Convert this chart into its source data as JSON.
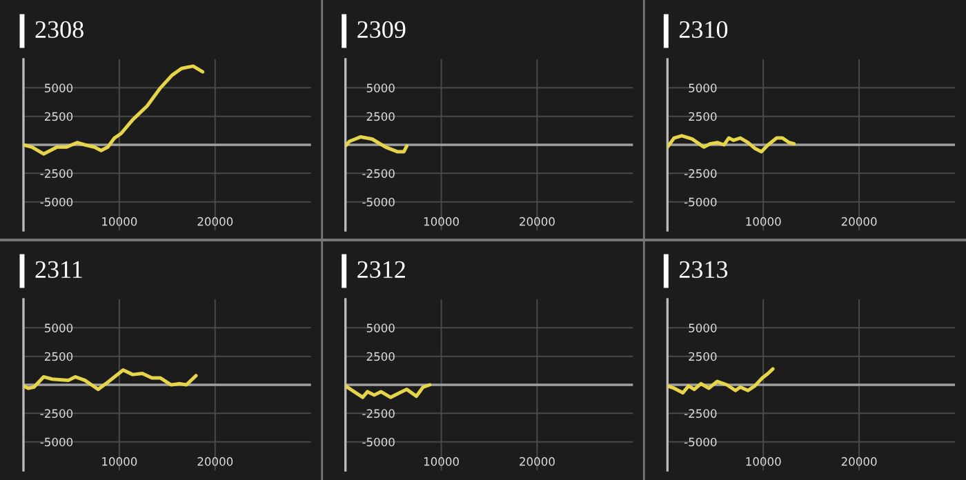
{
  "chart_data": [
    {
      "type": "line",
      "title": "2308",
      "xlim": [
        0,
        30000
      ],
      "xticks": [
        10000,
        20000
      ],
      "ylim": [
        -7500,
        7500
      ],
      "yticks": [
        -5000,
        -2500,
        2500,
        5000
      ],
      "grid": true,
      "legend": false,
      "ref_lines": [
        {
          "axis": "y",
          "value": 0,
          "color": "#a0a0a0"
        }
      ],
      "series": [
        {
          "color": "#e6d44a",
          "x": [
            0,
            900,
            2100,
            3500,
            4500,
            5600,
            6400,
            7400,
            8100,
            8800,
            9500,
            10200,
            11400,
            12900,
            14300,
            15500,
            16500,
            17700,
            18700
          ],
          "values": [
            0,
            -200,
            -800,
            -200,
            -200,
            200,
            0,
            -200,
            -500,
            -200,
            600,
            1000,
            2200,
            3400,
            5000,
            6100,
            6700,
            6900,
            6400
          ]
        }
      ]
    },
    {
      "type": "line",
      "title": "2309",
      "xlim": [
        0,
        30000
      ],
      "xticks": [
        10000,
        20000
      ],
      "ylim": [
        -7500,
        7500
      ],
      "yticks": [
        -5000,
        -2500,
        2500,
        5000
      ],
      "grid": true,
      "legend": false,
      "ref_lines": [
        {
          "axis": "y",
          "value": 0,
          "color": "#a0a0a0"
        }
      ],
      "series": [
        {
          "color": "#e6d44a",
          "x": [
            0,
            400,
            1600,
            2800,
            4200,
            5400,
            6100,
            6400
          ],
          "values": [
            -100,
            300,
            700,
            500,
            -200,
            -600,
            -600,
            -100
          ]
        }
      ]
    },
    {
      "type": "line",
      "title": "2310",
      "xlim": [
        0,
        30000
      ],
      "xticks": [
        10000,
        20000
      ],
      "ylim": [
        -7500,
        7500
      ],
      "yticks": [
        -5000,
        -2500,
        2500,
        5000
      ],
      "grid": true,
      "legend": false,
      "ref_lines": [
        {
          "axis": "y",
          "value": 0,
          "color": "#a0a0a0"
        }
      ],
      "series": [
        {
          "color": "#e6d44a",
          "x": [
            0,
            700,
            1500,
            2600,
            3800,
            4500,
            5200,
            5900,
            6400,
            6900,
            7600,
            8400,
            9100,
            9800,
            10500,
            11400,
            12000,
            12700,
            13200
          ],
          "values": [
            -200,
            600,
            800,
            500,
            -200,
            100,
            200,
            0,
            600,
            400,
            600,
            200,
            -300,
            -600,
            0,
            600,
            600,
            200,
            100
          ]
        }
      ]
    },
    {
      "type": "line",
      "title": "2311",
      "xlim": [
        0,
        30000
      ],
      "xticks": [
        10000,
        20000
      ],
      "ylim": [
        -7500,
        7500
      ],
      "yticks": [
        -5000,
        -2500,
        2500,
        5000
      ],
      "grid": true,
      "legend": false,
      "ref_lines": [
        {
          "axis": "y",
          "value": 0,
          "color": "#a0a0a0"
        }
      ],
      "series": [
        {
          "color": "#e6d44a",
          "x": [
            0,
            500,
            1100,
            2100,
            3000,
            4700,
            5400,
            6400,
            7100,
            7800,
            8600,
            9500,
            10400,
            11400,
            12400,
            13400,
            14300,
            15400,
            16300,
            17000,
            18000
          ],
          "values": [
            -100,
            -300,
            -200,
            700,
            500,
            400,
            700,
            400,
            0,
            -400,
            100,
            700,
            1300,
            900,
            1000,
            600,
            600,
            0,
            100,
            0,
            800
          ]
        }
      ]
    },
    {
      "type": "line",
      "title": "2312",
      "xlim": [
        0,
        30000
      ],
      "xticks": [
        10000,
        20000
      ],
      "ylim": [
        -7500,
        7500
      ],
      "yticks": [
        -5000,
        -2500,
        2500,
        5000
      ],
      "grid": true,
      "legend": false,
      "ref_lines": [
        {
          "axis": "y",
          "value": 0,
          "color": "#a0a0a0"
        }
      ],
      "series": [
        {
          "color": "#e6d44a",
          "x": [
            0,
            900,
            1800,
            2300,
            3000,
            3700,
            4700,
            5400,
            6400,
            7400,
            8100,
            8800
          ],
          "values": [
            -100,
            -600,
            -1100,
            -600,
            -900,
            -600,
            -1100,
            -800,
            -400,
            -1000,
            -200,
            0
          ]
        }
      ]
    },
    {
      "type": "line",
      "title": "2313",
      "xlim": [
        0,
        30000
      ],
      "xticks": [
        10000,
        20000
      ],
      "ylim": [
        -7500,
        7500
      ],
      "yticks": [
        -5000,
        -2500,
        2500,
        5000
      ],
      "grid": true,
      "legend": false,
      "ref_lines": [
        {
          "axis": "y",
          "value": 0,
          "color": "#a0a0a0"
        }
      ],
      "series": [
        {
          "color": "#e6d44a",
          "x": [
            0,
            700,
            1600,
            2200,
            2800,
            3500,
            4300,
            5200,
            6200,
            7100,
            7600,
            8400,
            9100,
            9900,
            10500,
            11000
          ],
          "values": [
            -100,
            -300,
            -700,
            -100,
            -400,
            100,
            -300,
            300,
            0,
            -500,
            -200,
            -500,
            -100,
            600,
            1000,
            1400
          ]
        }
      ]
    }
  ]
}
